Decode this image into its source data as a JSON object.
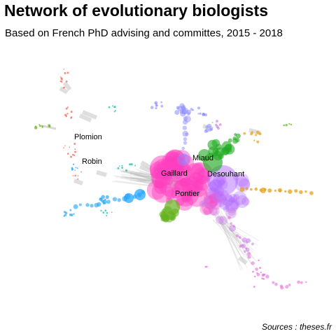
{
  "title": "Network of evolutionary biologists",
  "subtitle": "Based on French PhD advising and committes, 2015 - 2018",
  "caption": "Sources : theses.fr",
  "labels": [
    "Plomion",
    "Robin",
    "Miaud",
    "Gaillard",
    "Desouhant",
    "Pontier"
  ],
  "colors": {
    "pink": "#ff3fbf",
    "purple": "#b36bff",
    "green": "#22aa22",
    "olive": "#66b21f",
    "blue": "#1aa3ff",
    "lavender": "#8c8cff",
    "violet": "#c77ce8",
    "orange": "#e6a21a",
    "teal": "#16b8a6",
    "red": "#f06a5a",
    "magenta": "#e86fd9",
    "edge": "#bdbdbd"
  }
}
